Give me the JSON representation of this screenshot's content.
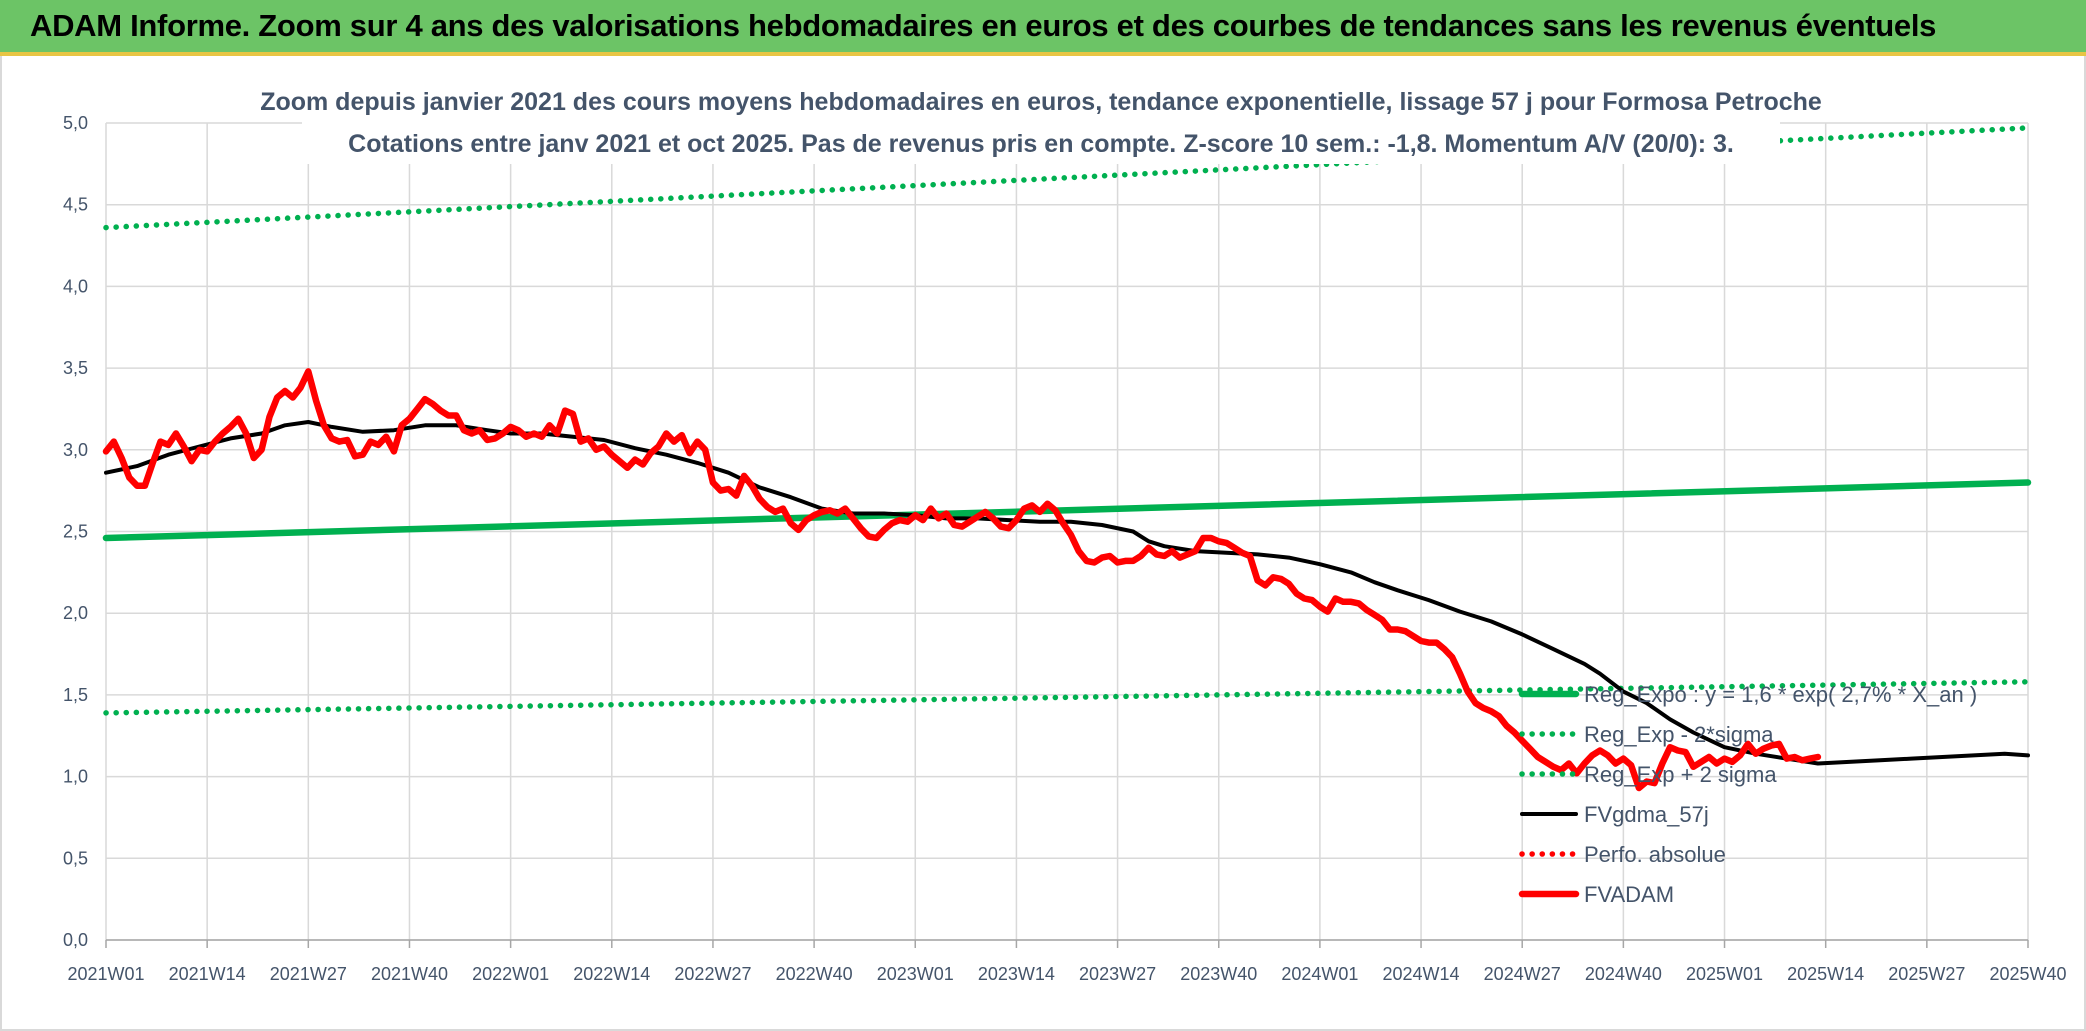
{
  "banner": {
    "title": "ADAM Informe. Zoom sur 4 ans des valorisations hebdomadaires en euros et des courbes de tendances sans les revenus éventuels"
  },
  "colors": {
    "banner": "#6cc466",
    "green": "#00b050",
    "black": "#000000",
    "red": "#ff0000",
    "axis_text": "#44546a",
    "grid": "#d9d9d9"
  },
  "chart_data": {
    "type": "line",
    "title": "Zoom depuis janvier 2021 des cours moyens hebdomadaires en euros, tendance exponentielle, lissage 57 j pour Formosa Petroche",
    "subtitle": "Cotations entre janv 2021 et oct 2025. Pas de revenus pris en compte. Z-score 10 sem.: -1,8. Momentum A/V (20/0): 3.",
    "xlabel": "",
    "ylabel": "",
    "ylim": [
      0,
      5
    ],
    "y_ticks": [
      "0,0",
      "0,5",
      "1,0",
      "1,5",
      "2,0",
      "2,5",
      "3,0",
      "3,5",
      "4,0",
      "4,5",
      "5,0"
    ],
    "x_ticks": [
      "2021W01",
      "2021W14",
      "2021W27",
      "2021W40",
      "2022W01",
      "2022W14",
      "2022W27",
      "2022W40",
      "2023W01",
      "2023W14",
      "2023W27",
      "2023W40",
      "2024W01",
      "2024W14",
      "2024W27",
      "2024W40",
      "2025W01",
      "2025W14",
      "2025W27",
      "2025W40"
    ],
    "grid": true,
    "legend_position": "bottom-right",
    "series": [
      {
        "name": "Reg_Expo : y = 1,6 * exp( 2,7% * X_an )",
        "style": "thick-solid",
        "color": "#00b050",
        "points": [
          [
            0,
            2.46
          ],
          [
            247,
            2.8
          ]
        ]
      },
      {
        "name": "Reg_Exp - 2*sigma",
        "style": "dotted",
        "color": "#00b050",
        "points": [
          [
            0,
            1.39
          ],
          [
            247,
            1.58
          ]
        ]
      },
      {
        "name": "Reg_Exp + 2 sigma",
        "style": "dotted",
        "color": "#00b050",
        "points": [
          [
            0,
            4.36
          ],
          [
            247,
            4.97
          ]
        ]
      },
      {
        "name": "FVgdma_57j",
        "style": "solid",
        "color": "#000000",
        "points": [
          [
            0,
            2.86
          ],
          [
            4,
            2.9
          ],
          [
            8,
            2.97
          ],
          [
            12,
            3.02
          ],
          [
            16,
            3.07
          ],
          [
            20,
            3.1
          ],
          [
            23,
            3.15
          ],
          [
            26,
            3.17
          ],
          [
            29,
            3.14
          ],
          [
            33,
            3.11
          ],
          [
            37,
            3.12
          ],
          [
            41,
            3.15
          ],
          [
            45,
            3.15
          ],
          [
            49,
            3.12
          ],
          [
            52,
            3.1
          ],
          [
            56,
            3.1
          ],
          [
            60,
            3.08
          ],
          [
            64,
            3.06
          ],
          [
            68,
            3.01
          ],
          [
            72,
            2.97
          ],
          [
            76,
            2.92
          ],
          [
            80,
            2.86
          ],
          [
            84,
            2.77
          ],
          [
            88,
            2.71
          ],
          [
            92,
            2.64
          ],
          [
            96,
            2.61
          ],
          [
            100,
            2.61
          ],
          [
            104,
            2.6
          ],
          [
            108,
            2.58
          ],
          [
            112,
            2.58
          ],
          [
            116,
            2.57
          ],
          [
            120,
            2.56
          ],
          [
            124,
            2.56
          ],
          [
            128,
            2.54
          ],
          [
            132,
            2.5
          ],
          [
            134,
            2.44
          ],
          [
            136,
            2.41
          ],
          [
            140,
            2.38
          ],
          [
            144,
            2.37
          ],
          [
            148,
            2.36
          ],
          [
            152,
            2.34
          ],
          [
            156,
            2.3
          ],
          [
            160,
            2.25
          ],
          [
            163,
            2.19
          ],
          [
            166,
            2.14
          ],
          [
            170,
            2.08
          ],
          [
            174,
            2.01
          ],
          [
            178,
            1.95
          ],
          [
            182,
            1.87
          ],
          [
            186,
            1.78
          ],
          [
            190,
            1.69
          ],
          [
            192,
            1.63
          ],
          [
            195,
            1.52
          ],
          [
            198,
            1.45
          ],
          [
            201,
            1.35
          ],
          [
            204,
            1.27
          ],
          [
            208,
            1.18
          ],
          [
            212,
            1.14
          ],
          [
            216,
            1.11
          ],
          [
            220,
            1.08
          ],
          [
            224,
            1.09
          ],
          [
            228,
            1.1
          ],
          [
            232,
            1.11
          ],
          [
            236,
            1.12
          ],
          [
            240,
            1.13
          ],
          [
            244,
            1.14
          ],
          [
            247,
            1.13
          ]
        ]
      },
      {
        "name": "Perfo. absolue",
        "style": "dotted",
        "color": "#ff0000",
        "points": []
      },
      {
        "name": "FVADAM",
        "style": "thick-solid",
        "color": "#ff0000",
        "points": [
          [
            0,
            2.99
          ],
          [
            1,
            3.05
          ],
          [
            2,
            2.95
          ],
          [
            3,
            2.83
          ],
          [
            4,
            2.78
          ],
          [
            5,
            2.78
          ],
          [
            6,
            2.92
          ],
          [
            7,
            3.05
          ],
          [
            8,
            3.03
          ],
          [
            9,
            3.1
          ],
          [
            10,
            3.02
          ],
          [
            11,
            2.93
          ],
          [
            12,
            3.0
          ],
          [
            13,
            2.99
          ],
          [
            14,
            3.05
          ],
          [
            15,
            3.1
          ],
          [
            16,
            3.14
          ],
          [
            17,
            3.19
          ],
          [
            18,
            3.1
          ],
          [
            19,
            2.95
          ],
          [
            20,
            3.0
          ],
          [
            21,
            3.2
          ],
          [
            22,
            3.32
          ],
          [
            23,
            3.36
          ],
          [
            24,
            3.32
          ],
          [
            25,
            3.38
          ],
          [
            26,
            3.48
          ],
          [
            27,
            3.3
          ],
          [
            28,
            3.15
          ],
          [
            29,
            3.07
          ],
          [
            30,
            3.05
          ],
          [
            31,
            3.06
          ],
          [
            32,
            2.96
          ],
          [
            33,
            2.97
          ],
          [
            34,
            3.05
          ],
          [
            35,
            3.03
          ],
          [
            36,
            3.08
          ],
          [
            37,
            2.99
          ],
          [
            38,
            3.15
          ],
          [
            39,
            3.19
          ],
          [
            40,
            3.25
          ],
          [
            41,
            3.31
          ],
          [
            42,
            3.28
          ],
          [
            43,
            3.24
          ],
          [
            44,
            3.21
          ],
          [
            45,
            3.21
          ],
          [
            46,
            3.12
          ],
          [
            47,
            3.1
          ],
          [
            48,
            3.12
          ],
          [
            49,
            3.06
          ],
          [
            50,
            3.07
          ],
          [
            51,
            3.1
          ],
          [
            52,
            3.14
          ],
          [
            53,
            3.12
          ],
          [
            54,
            3.08
          ],
          [
            55,
            3.1
          ],
          [
            56,
            3.08
          ],
          [
            57,
            3.15
          ],
          [
            58,
            3.1
          ],
          [
            59,
            3.24
          ],
          [
            60,
            3.22
          ],
          [
            61,
            3.05
          ],
          [
            62,
            3.07
          ],
          [
            63,
            3.0
          ],
          [
            64,
            3.02
          ],
          [
            65,
            2.97
          ],
          [
            66,
            2.93
          ],
          [
            67,
            2.89
          ],
          [
            68,
            2.94
          ],
          [
            69,
            2.91
          ],
          [
            70,
            2.98
          ],
          [
            71,
            3.02
          ],
          [
            72,
            3.1
          ],
          [
            73,
            3.05
          ],
          [
            74,
            3.09
          ],
          [
            75,
            2.98
          ],
          [
            76,
            3.05
          ],
          [
            77,
            3.0
          ],
          [
            78,
            2.8
          ],
          [
            79,
            2.75
          ],
          [
            80,
            2.76
          ],
          [
            81,
            2.72
          ],
          [
            82,
            2.84
          ],
          [
            83,
            2.78
          ],
          [
            84,
            2.7
          ],
          [
            85,
            2.65
          ],
          [
            86,
            2.62
          ],
          [
            87,
            2.64
          ],
          [
            88,
            2.55
          ],
          [
            89,
            2.51
          ],
          [
            90,
            2.57
          ],
          [
            91,
            2.6
          ],
          [
            92,
            2.62
          ],
          [
            93,
            2.63
          ],
          [
            94,
            2.61
          ],
          [
            95,
            2.64
          ],
          [
            96,
            2.58
          ],
          [
            97,
            2.52
          ],
          [
            98,
            2.47
          ],
          [
            99,
            2.46
          ],
          [
            100,
            2.51
          ],
          [
            101,
            2.55
          ],
          [
            102,
            2.57
          ],
          [
            103,
            2.56
          ],
          [
            104,
            2.6
          ],
          [
            105,
            2.57
          ],
          [
            106,
            2.64
          ],
          [
            107,
            2.58
          ],
          [
            108,
            2.61
          ],
          [
            109,
            2.54
          ],
          [
            110,
            2.53
          ],
          [
            111,
            2.56
          ],
          [
            112,
            2.59
          ],
          [
            113,
            2.62
          ],
          [
            114,
            2.58
          ],
          [
            115,
            2.53
          ],
          [
            116,
            2.52
          ],
          [
            117,
            2.57
          ],
          [
            118,
            2.64
          ],
          [
            119,
            2.66
          ],
          [
            120,
            2.62
          ],
          [
            121,
            2.67
          ],
          [
            122,
            2.63
          ],
          [
            123,
            2.55
          ],
          [
            124,
            2.48
          ],
          [
            125,
            2.38
          ],
          [
            126,
            2.32
          ],
          [
            127,
            2.31
          ],
          [
            128,
            2.34
          ],
          [
            129,
            2.35
          ],
          [
            130,
            2.31
          ],
          [
            131,
            2.32
          ],
          [
            132,
            2.32
          ],
          [
            133,
            2.35
          ],
          [
            134,
            2.4
          ],
          [
            135,
            2.36
          ],
          [
            136,
            2.35
          ],
          [
            137,
            2.38
          ],
          [
            138,
            2.34
          ],
          [
            139,
            2.36
          ],
          [
            140,
            2.38
          ],
          [
            141,
            2.46
          ],
          [
            142,
            2.46
          ],
          [
            143,
            2.44
          ],
          [
            144,
            2.43
          ],
          [
            145,
            2.4
          ],
          [
            146,
            2.37
          ],
          [
            147,
            2.35
          ],
          [
            148,
            2.2
          ],
          [
            149,
            2.17
          ],
          [
            150,
            2.22
          ],
          [
            151,
            2.21
          ],
          [
            152,
            2.18
          ],
          [
            153,
            2.12
          ],
          [
            154,
            2.09
          ],
          [
            155,
            2.08
          ],
          [
            156,
            2.04
          ],
          [
            157,
            2.01
          ],
          [
            158,
            2.09
          ],
          [
            159,
            2.07
          ],
          [
            160,
            2.07
          ],
          [
            161,
            2.06
          ],
          [
            162,
            2.02
          ],
          [
            163,
            1.99
          ],
          [
            164,
            1.96
          ],
          [
            165,
            1.9
          ],
          [
            166,
            1.9
          ],
          [
            167,
            1.89
          ],
          [
            168,
            1.86
          ],
          [
            169,
            1.83
          ],
          [
            170,
            1.82
          ],
          [
            171,
            1.82
          ],
          [
            172,
            1.78
          ],
          [
            173,
            1.73
          ],
          [
            174,
            1.63
          ],
          [
            175,
            1.52
          ],
          [
            176,
            1.45
          ],
          [
            177,
            1.42
          ],
          [
            178,
            1.4
          ],
          [
            179,
            1.37
          ],
          [
            180,
            1.31
          ],
          [
            181,
            1.27
          ],
          [
            182,
            1.22
          ],
          [
            183,
            1.17
          ],
          [
            184,
            1.12
          ],
          [
            185,
            1.09
          ],
          [
            186,
            1.06
          ],
          [
            187,
            1.04
          ],
          [
            188,
            1.08
          ],
          [
            189,
            1.02
          ],
          [
            190,
            1.08
          ],
          [
            191,
            1.13
          ],
          [
            192,
            1.16
          ],
          [
            193,
            1.13
          ],
          [
            194,
            1.08
          ],
          [
            195,
            1.11
          ],
          [
            196,
            1.07
          ],
          [
            197,
            0.93
          ],
          [
            198,
            0.97
          ],
          [
            199,
            0.96
          ],
          [
            200,
            1.08
          ],
          [
            201,
            1.18
          ],
          [
            202,
            1.16
          ],
          [
            203,
            1.15
          ],
          [
            204,
            1.06
          ],
          [
            205,
            1.09
          ],
          [
            206,
            1.12
          ],
          [
            207,
            1.08
          ],
          [
            208,
            1.11
          ],
          [
            209,
            1.09
          ],
          [
            210,
            1.13
          ],
          [
            211,
            1.2
          ],
          [
            212,
            1.14
          ],
          [
            213,
            1.17
          ],
          [
            214,
            1.19
          ],
          [
            215,
            1.2
          ],
          [
            216,
            1.11
          ],
          [
            217,
            1.12
          ],
          [
            218,
            1.1
          ],
          [
            219,
            1.11
          ],
          [
            220,
            1.12
          ]
        ]
      }
    ]
  }
}
